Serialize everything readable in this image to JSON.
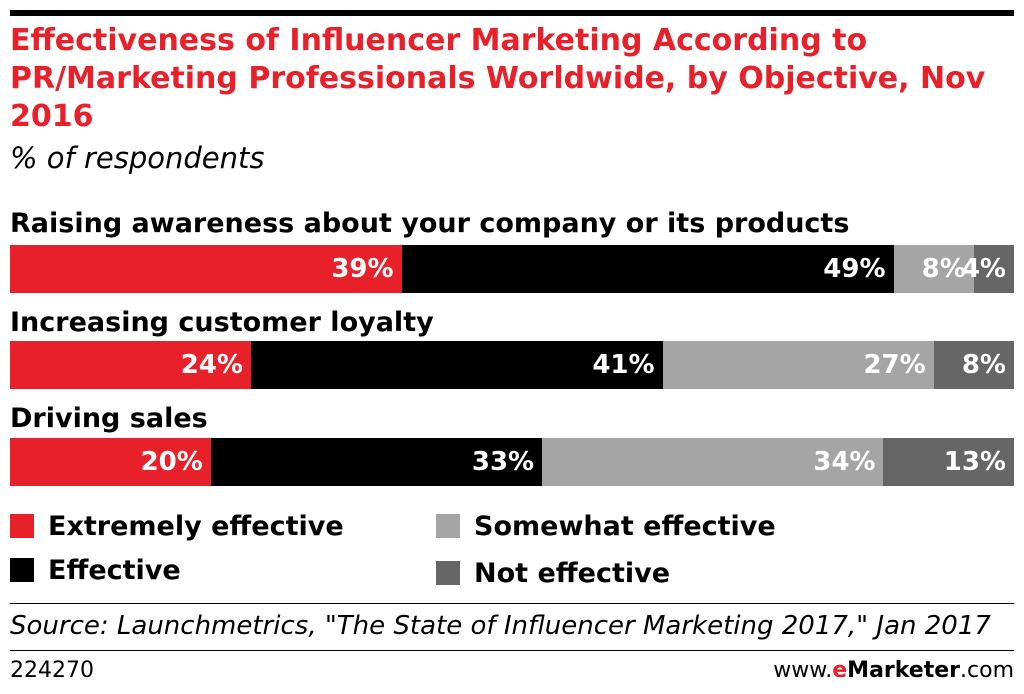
{
  "title": "Effectiveness of Influencer Marketing According to PR/Marketing Professionals Worldwide, by Objective, Nov 2016",
  "subtitle": "% of respondents",
  "colors": {
    "Extremely effective": "#e8202a",
    "Effective": "#000000",
    "Somewhat effective": "#a5a5a5",
    "Not effective": "#666666"
  },
  "chart_data": {
    "type": "bar",
    "orientation": "horizontal-stacked-100",
    "categories": [
      "Raising awareness about your company or its products",
      "Increasing customer loyalty",
      "Driving sales"
    ],
    "series": [
      {
        "name": "Extremely effective",
        "values": [
          39,
          24,
          20
        ],
        "labels": [
          "39%",
          "24%",
          "20%"
        ]
      },
      {
        "name": "Effective",
        "values": [
          49,
          41,
          33
        ],
        "labels": [
          "49%",
          "41%",
          "33%"
        ]
      },
      {
        "name": "Somewhat effective",
        "values": [
          8,
          27,
          34
        ],
        "labels": [
          "8%",
          "27%",
          "34%"
        ]
      },
      {
        "name": "Not effective",
        "values": [
          4,
          8,
          13
        ],
        "labels": [
          "4%",
          "8%",
          "13%"
        ]
      }
    ],
    "legend": "bottom"
  },
  "legend": {
    "items": [
      {
        "label": "Extremely effective"
      },
      {
        "label": "Somewhat effective"
      },
      {
        "label": "Effective"
      },
      {
        "label": "Not effective"
      }
    ]
  },
  "footer": {
    "source": "Source: Launchmetrics, \"The State of Influencer Marketing 2017,\" Jan 2017",
    "chart_id": "224270",
    "brand_prefix": "www.",
    "brand_e": "e",
    "brand_name": "Marketer",
    "brand_suffix": ".com"
  }
}
